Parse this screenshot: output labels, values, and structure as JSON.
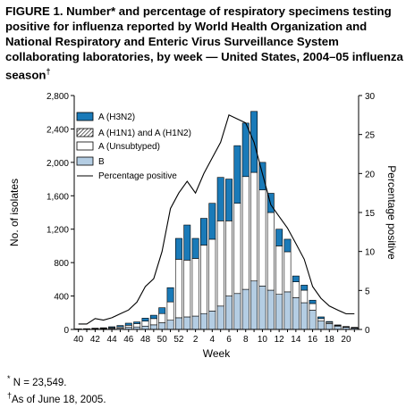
{
  "title": {
    "text": "FIGURE 1. Number* and percentage of respiratory specimens testing positive for influenza reported by World Health Organization and National Respiratory and Enteric Virus Surveillance System collaborating laboratories, by week — United States, 2004–05 influenza season",
    "marker": "†"
  },
  "footnotes": [
    {
      "marker": "*",
      "text": " N = 23,549."
    },
    {
      "marker": "†",
      "text": "As of June 18, 2005."
    }
  ],
  "colors": {
    "h3n2": "#1a7ab8",
    "unsubtyped": "#ffffff",
    "b": "#b4cde3",
    "line": "#000000"
  },
  "chart_data": {
    "type": "bar",
    "stacked": true,
    "xlabel": "Week",
    "ylabel": "No. of isolates",
    "y2label": "Percentage positive",
    "ylim": [
      0,
      2800
    ],
    "yticks": [
      0,
      400,
      800,
      1200,
      1600,
      2000,
      2400,
      2800
    ],
    "ytick_labels": [
      "0",
      "400",
      "800",
      "1,200",
      "1,600",
      "2,000",
      "2,400",
      "2,800"
    ],
    "y2lim": [
      0,
      30
    ],
    "y2ticks": [
      0,
      5,
      10,
      15,
      20,
      25,
      30
    ],
    "x_tick_labels": [
      "40",
      "42",
      "44",
      "46",
      "48",
      "50",
      "52",
      "2",
      "4",
      "6",
      "8",
      "10",
      "12",
      "14",
      "16",
      "18",
      "20"
    ],
    "legend_position": "top-left",
    "categories": [
      "40",
      "41",
      "42",
      "43",
      "44",
      "45",
      "46",
      "47",
      "48",
      "49",
      "50",
      "51",
      "52",
      "53",
      "1",
      "2",
      "3",
      "4",
      "5",
      "6",
      "7",
      "8",
      "9",
      "10",
      "11",
      "12",
      "13",
      "14",
      "15",
      "16",
      "17",
      "18",
      "19",
      "20"
    ],
    "series": [
      {
        "name": "B",
        "values": [
          3,
          4,
          6,
          8,
          12,
          16,
          25,
          30,
          40,
          55,
          80,
          110,
          140,
          150,
          160,
          190,
          220,
          280,
          400,
          430,
          480,
          580,
          520,
          470,
          420,
          450,
          380,
          320,
          230,
          100,
          70,
          40,
          25,
          15
        ]
      },
      {
        "name": "A (Unsubtyped)",
        "values": [
          2,
          3,
          5,
          6,
          10,
          16,
          25,
          40,
          60,
          75,
          110,
          220,
          700,
          680,
          690,
          820,
          860,
          1020,
          900,
          1080,
          1350,
          1300,
          1150,
          930,
          580,
          480,
          190,
          150,
          80,
          30,
          15,
          8,
          5,
          5
        ]
      },
      {
        "name": "A (H1N1) and A (H1N2)",
        "values": [
          0,
          0,
          0,
          0,
          0,
          0,
          0,
          0,
          0,
          0,
          0,
          0,
          0,
          0,
          0,
          0,
          0,
          0,
          0,
          0,
          0,
          0,
          0,
          0,
          0,
          0,
          0,
          0,
          0,
          0,
          0,
          0,
          0,
          0
        ]
      },
      {
        "name": "A (H3N2)",
        "values": [
          1,
          2,
          4,
          6,
          10,
          15,
          25,
          20,
          35,
          40,
          70,
          170,
          250,
          420,
          240,
          320,
          430,
          520,
          500,
          690,
          640,
          730,
          330,
          230,
          200,
          150,
          70,
          60,
          40,
          20,
          10,
          6,
          5,
          5
        ]
      }
    ],
    "line": {
      "name": "Percentage positive",
      "values": [
        0.7,
        0.7,
        1.4,
        1.2,
        1.5,
        2,
        2.5,
        3.5,
        5.5,
        6.5,
        10,
        15.5,
        17.5,
        19,
        17.5,
        20,
        22,
        24,
        27.5,
        27,
        26.5,
        24,
        20,
        16,
        14.5,
        13,
        11,
        9,
        5.5,
        4,
        3,
        2.5,
        2,
        2
      ]
    }
  }
}
